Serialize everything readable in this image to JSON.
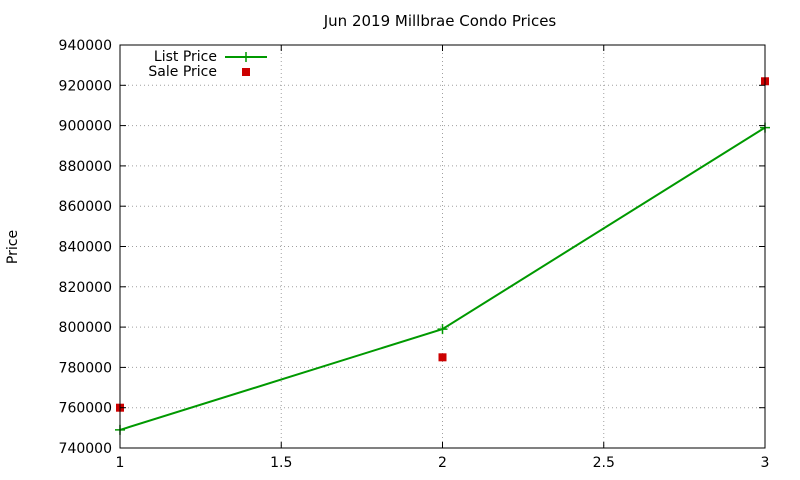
{
  "chart_data": {
    "type": "line",
    "title": "Jun 2019 Millbrae Condo Prices",
    "xlabel": "",
    "ylabel": "Price",
    "xlim": [
      1,
      3
    ],
    "ylim": [
      740000,
      940000
    ],
    "xticks": [
      1,
      1.5,
      2,
      2.5,
      3
    ],
    "xtick_labels": [
      "1",
      "1.5",
      "2",
      "2.5",
      "3"
    ],
    "yticks": [
      740000,
      760000,
      780000,
      800000,
      820000,
      840000,
      860000,
      880000,
      900000,
      920000,
      940000
    ],
    "ytick_labels": [
      "740000",
      "760000",
      "780000",
      "800000",
      "820000",
      "840000",
      "860000",
      "880000",
      "900000",
      "920000",
      "940000"
    ],
    "grid": true,
    "legend_position": "top-left",
    "series": [
      {
        "name": "List Price",
        "style": "line-plus",
        "color": "#009900",
        "x": [
          1,
          2,
          3
        ],
        "y": [
          749000,
          799000,
          899000
        ]
      },
      {
        "name": "Sale Price",
        "style": "square-points",
        "color": "#cc0000",
        "x": [
          1,
          2,
          3
        ],
        "y": [
          760000,
          785000,
          922000
        ]
      }
    ]
  }
}
